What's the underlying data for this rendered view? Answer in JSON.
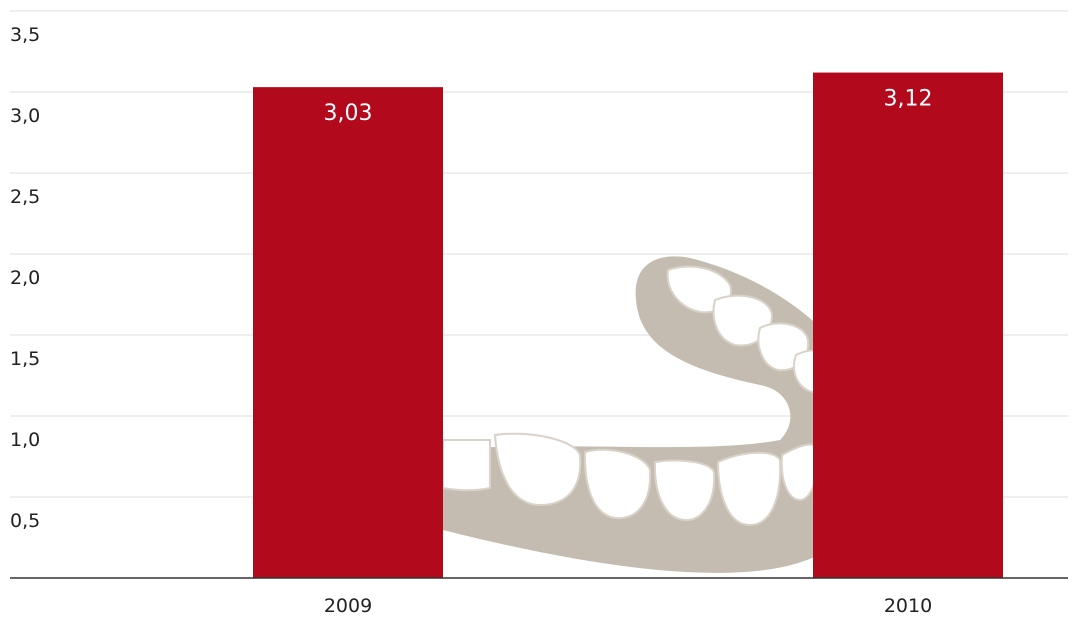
{
  "chart_data": {
    "type": "bar",
    "categories": [
      "2009",
      "2010"
    ],
    "values": [
      3.03,
      3.12
    ],
    "value_labels": [
      "3,03",
      "3,12"
    ],
    "color": "#b2091d",
    "ylim": [
      0,
      3.5
    ],
    "yticks": [
      {
        "value": 0.5,
        "label": "0,5"
      },
      {
        "value": 1.0,
        "label": "1,0"
      },
      {
        "value": 1.5,
        "label": "1,5"
      },
      {
        "value": 2.0,
        "label": "2,0"
      },
      {
        "value": 2.5,
        "label": "2,5"
      },
      {
        "value": 3.0,
        "label": "3,0"
      },
      {
        "value": 3.5,
        "label": "3,5"
      }
    ],
    "grid": true
  }
}
